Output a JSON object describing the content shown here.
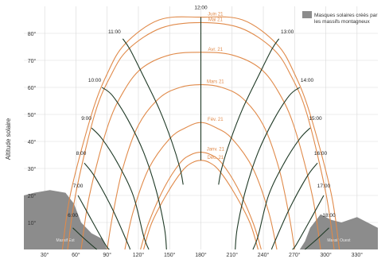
{
  "chart_data": {
    "type": "line",
    "title": "",
    "ylabel": "Altitude solaire",
    "xlabel": "",
    "xlim": [
      10,
      350
    ],
    "ylim": [
      0,
      90
    ],
    "x_ticks": [
      30,
      60,
      90,
      120,
      150,
      180,
      210,
      240,
      270,
      300,
      330
    ],
    "x_tick_labels": [
      "30°",
      "60°",
      "90°",
      "120°",
      "150°",
      "180°",
      "210°",
      "240°",
      "270°",
      "300°",
      "330°"
    ],
    "y_ticks": [
      10,
      20,
      30,
      40,
      50,
      60,
      70,
      80
    ],
    "y_tick_labels": [
      "10°",
      "20°",
      "30°",
      "40°",
      "50°",
      "60°",
      "70°",
      "80°"
    ],
    "grid": true,
    "legend": {
      "placement": "top-right",
      "entries": [
        {
          "label": "Masques solaires créés par les massifs montagneux",
          "color": "#8c8c8c"
        }
      ]
    },
    "date_curves": {
      "color": "#e08a4a",
      "series": [
        {
          "name": "Juin 21",
          "points": [
            [
              47,
              0
            ],
            [
              55,
              21
            ],
            [
              75,
              50
            ],
            [
              90,
              65
            ],
            [
              107,
              76
            ],
            [
              140,
              85
            ],
            [
              180,
              86
            ],
            [
              220,
              85
            ],
            [
              253,
              76
            ],
            [
              270,
              65
            ],
            [
              285,
              50
            ],
            [
              305,
              21
            ],
            [
              313,
              0
            ]
          ]
        },
        {
          "name": "Mai 21",
          "points": [
            [
              52,
              0
            ],
            [
              60,
              21
            ],
            [
              78,
              50
            ],
            [
              93,
              64
            ],
            [
              110,
              74
            ],
            [
              142,
              82
            ],
            [
              180,
              84
            ],
            [
              218,
              82
            ],
            [
              250,
              74
            ],
            [
              267,
              64
            ],
            [
              282,
              50
            ],
            [
              300,
              21
            ],
            [
              308,
              0
            ]
          ]
        },
        {
          "name": "Avr. 21",
          "points": [
            [
              65,
              0
            ],
            [
              73,
              20
            ],
            [
              90,
              45
            ],
            [
              105,
              58
            ],
            [
              123,
              67
            ],
            [
              150,
              72
            ],
            [
              180,
              73
            ],
            [
              210,
              72
            ],
            [
              237,
              67
            ],
            [
              255,
              58
            ],
            [
              270,
              45
            ],
            [
              287,
              20
            ],
            [
              295,
              0
            ]
          ]
        },
        {
          "name": "Mars 21",
          "points": [
            [
              90,
              0
            ],
            [
              95,
              12
            ],
            [
              105,
              30
            ],
            [
              120,
              46
            ],
            [
              140,
              56
            ],
            [
              160,
              60
            ],
            [
              180,
              61
            ],
            [
              200,
              60
            ],
            [
              220,
              56
            ],
            [
              240,
              46
            ],
            [
              255,
              30
            ],
            [
              265,
              12
            ],
            [
              270,
              0
            ]
          ]
        },
        {
          "name": "Fév. 21",
          "points": [
            [
              107,
              0
            ],
            [
              115,
              14
            ],
            [
              130,
              30
            ],
            [
              150,
              41
            ],
            [
              165,
              45
            ],
            [
              180,
              47
            ],
            [
              195,
              45
            ],
            [
              210,
              41
            ],
            [
              230,
              30
            ],
            [
              245,
              14
            ],
            [
              253,
              0
            ]
          ]
        },
        {
          "name": "Janv. 21",
          "points": [
            [
              122,
              0
            ],
            [
              130,
              10
            ],
            [
              145,
              23
            ],
            [
              160,
              32
            ],
            [
              170,
              35
            ],
            [
              180,
              36
            ],
            [
              190,
              35
            ],
            [
              200,
              32
            ],
            [
              215,
              23
            ],
            [
              230,
              10
            ],
            [
              238,
              0
            ]
          ]
        },
        {
          "name": "Déc. 21",
          "points": [
            [
              125,
              0
            ],
            [
              133,
              10
            ],
            [
              148,
              21
            ],
            [
              162,
              29
            ],
            [
              171,
              32
            ],
            [
              180,
              33
            ],
            [
              189,
              32
            ],
            [
              198,
              29
            ],
            [
              212,
              21
            ],
            [
              227,
              10
            ],
            [
              235,
              0
            ]
          ]
        }
      ]
    },
    "hour_curves": {
      "color": "#1f3a26",
      "series": [
        {
          "name": "6:00",
          "points": [
            [
              57,
              8
            ],
            [
              68,
              4
            ],
            [
              80,
              0
            ]
          ],
          "label_point": [
            57,
            12
          ]
        },
        {
          "name": "7:00",
          "points": [
            [
              62,
              20
            ],
            [
              72,
              13
            ],
            [
              88,
              2
            ],
            [
              92,
              0
            ]
          ],
          "label_point": [
            62,
            23
          ]
        },
        {
          "name": "8:00",
          "points": [
            [
              68,
              32
            ],
            [
              78,
              27
            ],
            [
              95,
              15
            ],
            [
              110,
              2
            ],
            [
              112,
              0
            ]
          ],
          "label_point": [
            65,
            35
          ]
        },
        {
          "name": "9:00",
          "points": [
            [
              75,
              45
            ],
            [
              85,
              41
            ],
            [
              100,
              32
            ],
            [
              115,
              20
            ],
            [
              125,
              5
            ],
            [
              130,
              0
            ]
          ],
          "label_point": [
            70,
            48
          ]
        },
        {
          "name": "10:00",
          "points": [
            [
              85,
              60
            ],
            [
              95,
              57
            ],
            [
              110,
              48
            ],
            [
              125,
              36
            ],
            [
              137,
              22
            ],
            [
              145,
              8
            ],
            [
              147,
              0
            ]
          ],
          "label_point": [
            78,
            62
          ]
        },
        {
          "name": "11:00",
          "points": [
            [
              105,
              78
            ],
            [
              112,
              74
            ],
            [
              125,
              64
            ],
            [
              140,
              52
            ],
            [
              152,
              40
            ],
            [
              160,
              30
            ],
            [
              163,
              24
            ]
          ],
          "label_point": [
            97,
            80
          ]
        },
        {
          "name": "12:00",
          "points": [
            [
              180,
              86
            ],
            [
              180,
              72
            ],
            [
              180,
              61
            ],
            [
              180,
              47
            ],
            [
              180,
              33
            ]
          ],
          "label_point": [
            180,
            89
          ]
        },
        {
          "name": "13:00",
          "points": [
            [
              255,
              78
            ],
            [
              248,
              74
            ],
            [
              235,
              64
            ],
            [
              220,
              52
            ],
            [
              208,
              40
            ],
            [
              200,
              30
            ],
            [
              197,
              24
            ]
          ],
          "label_point": [
            263,
            80
          ]
        },
        {
          "name": "14:00",
          "points": [
            [
              275,
              60
            ],
            [
              265,
              57
            ],
            [
              250,
              48
            ],
            [
              235,
              36
            ],
            [
              223,
              22
            ],
            [
              215,
              8
            ],
            [
              213,
              0
            ]
          ],
          "label_point": [
            282,
            62
          ]
        },
        {
          "name": "15:00",
          "points": [
            [
              285,
              45
            ],
            [
              275,
              41
            ],
            [
              260,
              32
            ],
            [
              245,
              20
            ],
            [
              235,
              5
            ],
            [
              230,
              0
            ]
          ],
          "label_point": [
            290,
            48
          ]
        },
        {
          "name": "16:00",
          "points": [
            [
              292,
              32
            ],
            [
              282,
              27
            ],
            [
              265,
              15
            ],
            [
              250,
              2
            ],
            [
              248,
              0
            ]
          ],
          "label_point": [
            295,
            35
          ]
        },
        {
          "name": "17:00",
          "points": [
            [
              298,
              20
            ],
            [
              288,
              13
            ],
            [
              272,
              2
            ],
            [
              268,
              0
            ]
          ],
          "label_point": [
            298,
            23
          ]
        },
        {
          "name": "18:00",
          "points": [
            [
              303,
              8
            ],
            [
              292,
              4
            ],
            [
              280,
              0
            ]
          ],
          "label_point": [
            303,
            12
          ]
        }
      ]
    },
    "mask_regions": [
      {
        "name": "Massif Est",
        "points": [
          [
            10,
            0
          ],
          [
            10,
            20
          ],
          [
            20,
            21
          ],
          [
            35,
            22
          ],
          [
            50,
            21
          ],
          [
            58,
            17
          ],
          [
            65,
            10
          ],
          [
            75,
            6
          ],
          [
            85,
            4
          ],
          [
            90,
            0
          ]
        ]
      },
      {
        "name": "Massif Ouest",
        "points": [
          [
            275,
            0
          ],
          [
            280,
            3
          ],
          [
            285,
            8
          ],
          [
            295,
            13
          ],
          [
            305,
            11
          ],
          [
            315,
            10
          ],
          [
            330,
            12
          ],
          [
            340,
            10
          ],
          [
            350,
            8
          ],
          [
            350,
            0
          ]
        ]
      }
    ]
  }
}
